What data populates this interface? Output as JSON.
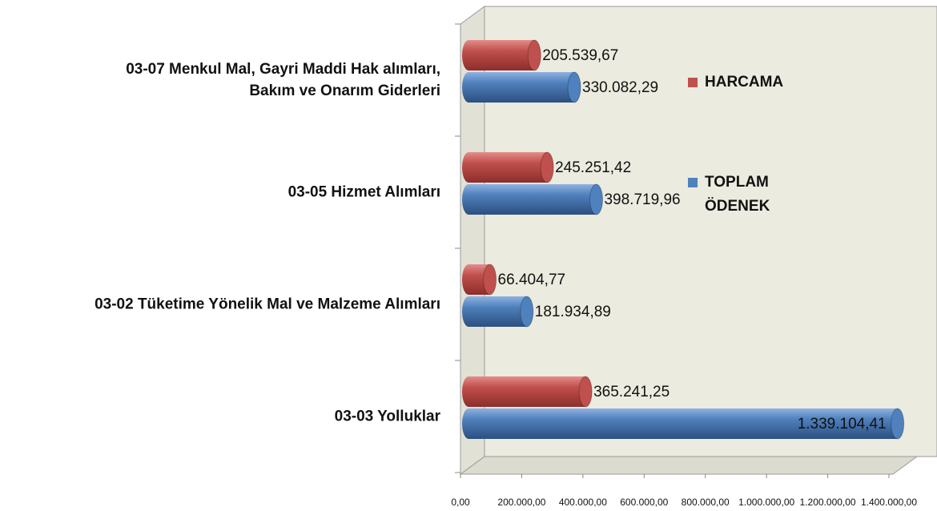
{
  "chart_data": {
    "type": "bar",
    "orientation": "horizontal",
    "categories": [
      "03-07 Menkul Mal, Gayri Maddi Hak alımları, Bakım ve Onarım Giderleri",
      "03-05 Hizmet Alımları",
      "03-02 Tüketime Yönelik Mal ve Malzeme Alımları",
      "03-03 Yolluklar"
    ],
    "series": [
      {
        "name": "HARCAMA",
        "color": "#c0504d",
        "values": [
          205539.67,
          245251.42,
          66404.77,
          365241.25
        ],
        "value_labels": [
          "205.539,67",
          "245.251,42",
          "66.404,77",
          "365.241,25"
        ]
      },
      {
        "name": "TOPLAM ÖDENEK",
        "color": "#4f81bd",
        "values": [
          330082.29,
          398719.96,
          181934.89,
          1339104.41
        ],
        "value_labels": [
          "330.082,29",
          "398.719,96",
          "181.934,89",
          "1.339.104,41"
        ]
      }
    ],
    "xlim": [
      0,
      1400000
    ],
    "xticks": [
      {
        "value": 0,
        "label": "0,00"
      },
      {
        "value": 200000,
        "label": "200.000,00"
      },
      {
        "value": 400000,
        "label": "400.000,00"
      },
      {
        "value": 600000,
        "label": "600.000,00"
      },
      {
        "value": 800000,
        "label": "800.000,00"
      },
      {
        "value": 1000000,
        "label": "1.000.000,00"
      },
      {
        "value": 1200000,
        "label": "1.200.000,00"
      },
      {
        "value": 1400000,
        "label": "1.400.000,00"
      }
    ],
    "grid": false,
    "legend": "right"
  }
}
